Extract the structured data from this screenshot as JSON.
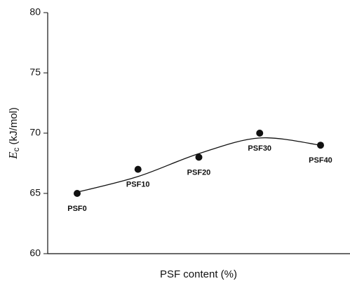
{
  "chart_data": {
    "type": "scatter",
    "xlabel": "PSF content (%)",
    "ylabel": {
      "symbol": "E",
      "subscript": "c",
      "unit": "(kJ/mol)"
    },
    "categories": [
      "PSF0",
      "PSF10",
      "PSF20",
      "PSF30",
      "PSF40"
    ],
    "series": [
      {
        "type": "scatter",
        "color": "#111111",
        "values": [
          65,
          67,
          68,
          70,
          69
        ]
      },
      {
        "type": "line",
        "color": "#111111",
        "values": [
          65.1,
          66.4,
          68.3,
          69.6,
          69.0
        ]
      }
    ],
    "ylim": [
      60,
      80
    ],
    "yticks": [
      60,
      65,
      70,
      75,
      80
    ]
  }
}
